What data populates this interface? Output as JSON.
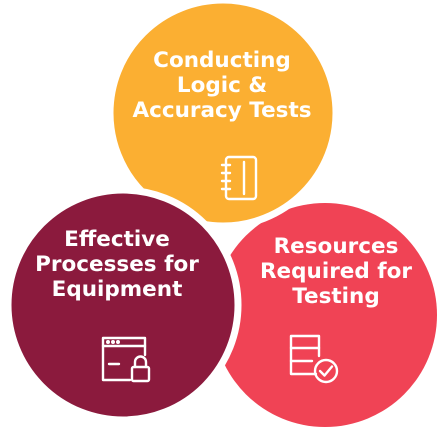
{
  "diagram": {
    "circles": [
      {
        "id": "top",
        "label": "Conducting\nLogic &\nAccuracy Tests",
        "color": "#FBAF32",
        "icon": "notebook-icon"
      },
      {
        "id": "left",
        "label": "Effective\nProcesses for\nEquipment",
        "color": "#8B1A3D",
        "icon": "window-lock-icon"
      },
      {
        "id": "right",
        "label": "Resources\nRequired for\nTesting",
        "color": "#F04355",
        "icon": "database-check-icon"
      }
    ],
    "outline_color": "#ffffff"
  }
}
